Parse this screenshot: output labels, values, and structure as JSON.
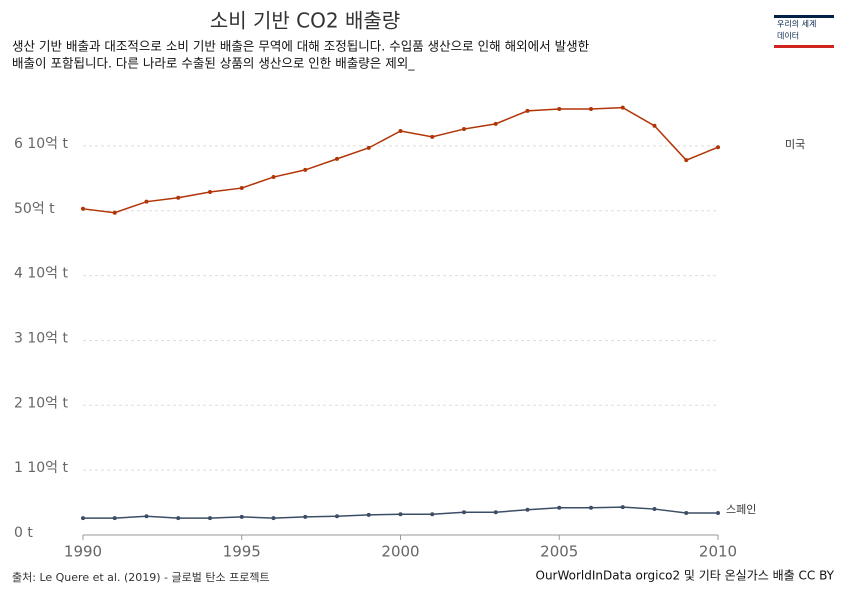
{
  "logo": [
    "우리의 세계",
    "데이터"
  ],
  "chart_data": {
    "type": "line",
    "title": "소비 기반 CO2 배출량",
    "subtitle": [
      "생산 기반 배출과 대조적으로 소비 기반 배출은 무역에 대해 조정됩니다. 수입품 생산으로 인해 해외에서 발생한",
      "배출이 포함됩니다. 다른 나라로 수출된 상품의 생산으로 인한 배출량은 제외_"
    ],
    "x": [
      1990,
      1991,
      1992,
      1993,
      1994,
      1995,
      1996,
      1997,
      1998,
      1999,
      2000,
      2001,
      2002,
      2003,
      2004,
      2005,
      2006,
      2007,
      2008,
      2009,
      2010
    ],
    "series": [
      {
        "name": "미국",
        "color": "#b13507",
        "values": [
          5.03,
          4.97,
          5.14,
          5.2,
          5.29,
          5.35,
          5.52,
          5.63,
          5.8,
          5.97,
          6.23,
          6.14,
          6.26,
          6.34,
          6.54,
          6.57,
          6.57,
          6.59,
          6.31,
          5.78,
          5.98
        ]
      },
      {
        "name": "스페인",
        "color": "#3c4e66",
        "values": [
          0.26,
          0.26,
          0.29,
          0.26,
          0.26,
          0.28,
          0.26,
          0.28,
          0.29,
          0.31,
          0.32,
          0.32,
          0.35,
          0.35,
          0.39,
          0.42,
          0.42,
          0.43,
          0.4,
          0.34,
          0.34
        ]
      }
    ],
    "xlim": [
      1990,
      2010
    ],
    "xticks": [
      1990,
      1995,
      2000,
      2005,
      2010
    ],
    "ylim": [
      0,
      6.6
    ],
    "yticks": [
      {
        "value": 0,
        "label": "0 t"
      },
      {
        "value": 1,
        "label": "1 10억 t"
      },
      {
        "value": 2,
        "label": "2 10억 t"
      },
      {
        "value": 3,
        "label": "3 10억 t"
      },
      {
        "value": 4,
        "label": "4 10억 t"
      },
      {
        "value": 5,
        "label": "50억 t"
      },
      {
        "value": 6,
        "label": "6 10억 t"
      }
    ],
    "grid": true,
    "source": "출처: Le Quere et al. (2019) - 글로벌 탄소 프로젝트",
    "footer": "OurWorldInData orgico2 및 기타 온실가스 배출 CC BY"
  }
}
